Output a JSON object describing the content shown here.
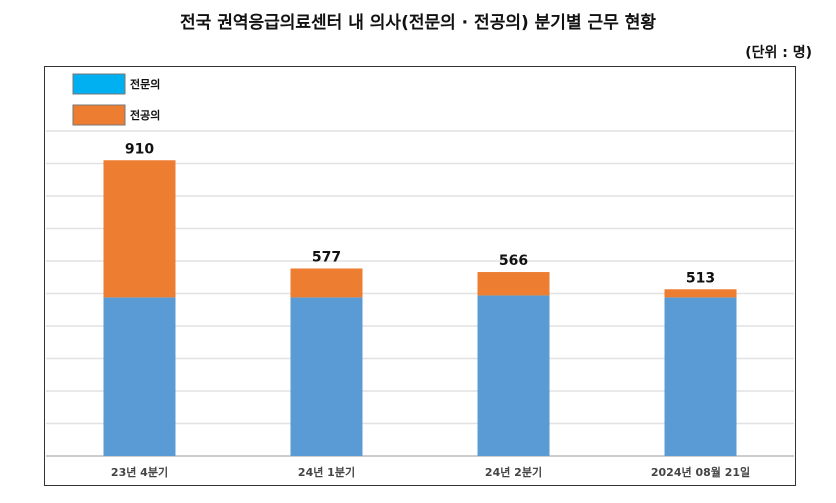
{
  "title": "전국 권역응급의료센터 내 의사(전문의 · 전공의) 분기별 근무 현황",
  "unit": "(단위 : 명)",
  "chart_data": {
    "type": "bar",
    "stacked": true,
    "title": "전국 권역응급의료센터 내 의사(전문의 · 전공의) 분기별 근무 현황",
    "categories": [
      "23년 4분기",
      "24년 1분기",
      "24년 2분기",
      "2024년 08월 21일"
    ],
    "series": [
      {
        "name": "전문의",
        "values": [
          488,
          488,
          494,
          488
        ],
        "color": "#5B9BD5",
        "legend_color": "#00B0F0"
      },
      {
        "name": "전공의",
        "values": [
          422,
          89,
          72,
          25
        ],
        "color": "#ED7D31"
      }
    ],
    "totals": [
      910,
      577,
      566,
      513
    ],
    "ylim": [
      0,
      1000
    ],
    "y_ticks_shown": false,
    "grid": true,
    "legend": "top-left"
  }
}
